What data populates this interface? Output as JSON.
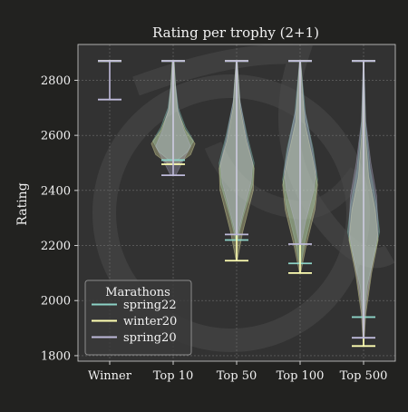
{
  "chart_data": {
    "type": "violin",
    "title": "Rating per trophy (2+1)",
    "ylabel": "Rating",
    "xlabel": "",
    "categories": [
      "Winner",
      "Top 10",
      "Top 50",
      "Top 100",
      "Top 500"
    ],
    "ylim": [
      1780,
      2930
    ],
    "yticks": [
      1800,
      2000,
      2200,
      2400,
      2600,
      2800
    ],
    "grid": true,
    "legend": {
      "title": "Marathons",
      "placement": "lower-left"
    },
    "series": [
      {
        "name": "spring22",
        "color": "#8dd3c7",
        "min": [
          2870,
          2510,
          2220,
          2135,
          1940
        ],
        "max": [
          2870,
          2870,
          2870,
          2870,
          2870
        ],
        "widths": [
          0,
          0.7,
          0.6,
          0.6,
          0.55
        ],
        "profiles": [
          [],
          [
            [
              2510,
              0.2
            ],
            [
              2540,
              0.7
            ],
            [
              2580,
              1.0
            ],
            [
              2630,
              0.6
            ],
            [
              2700,
              0.25
            ],
            [
              2780,
              0.12
            ],
            [
              2870,
              0.05
            ]
          ],
          [
            [
              2220,
              0.05
            ],
            [
              2300,
              0.35
            ],
            [
              2420,
              0.9
            ],
            [
              2500,
              1.0
            ],
            [
              2600,
              0.6
            ],
            [
              2720,
              0.2
            ],
            [
              2870,
              0.03
            ]
          ],
          [
            [
              2135,
              0.05
            ],
            [
              2220,
              0.3
            ],
            [
              2350,
              0.8
            ],
            [
              2440,
              1.0
            ],
            [
              2550,
              0.75
            ],
            [
              2680,
              0.3
            ],
            [
              2870,
              0.03
            ]
          ],
          [
            [
              1940,
              0.03
            ],
            [
              2050,
              0.2
            ],
            [
              2150,
              0.6
            ],
            [
              2250,
              1.0
            ],
            [
              2350,
              0.8
            ],
            [
              2480,
              0.4
            ],
            [
              2650,
              0.12
            ],
            [
              2870,
              0.02
            ]
          ]
        ]
      },
      {
        "name": "winter20",
        "color": "#ffffb3",
        "min": [
          2870,
          2495,
          2145,
          2100,
          1835
        ],
        "max": [
          2870,
          2870,
          2870,
          2870,
          2870
        ],
        "widths": [
          0,
          0.75,
          0.6,
          0.6,
          0.5
        ],
        "profiles": [
          [],
          [
            [
              2495,
              0.2
            ],
            [
              2530,
              0.8
            ],
            [
              2570,
              1.0
            ],
            [
              2620,
              0.55
            ],
            [
              2690,
              0.2
            ],
            [
              2780,
              0.1
            ],
            [
              2870,
              0.04
            ]
          ],
          [
            [
              2145,
              0.03
            ],
            [
              2250,
              0.35
            ],
            [
              2400,
              0.95
            ],
            [
              2480,
              1.0
            ],
            [
              2580,
              0.55
            ],
            [
              2700,
              0.2
            ],
            [
              2870,
              0.03
            ]
          ],
          [
            [
              2100,
              0.03
            ],
            [
              2200,
              0.35
            ],
            [
              2330,
              0.85
            ],
            [
              2420,
              1.0
            ],
            [
              2520,
              0.7
            ],
            [
              2650,
              0.25
            ],
            [
              2870,
              0.03
            ]
          ],
          [
            [
              1835,
              0.02
            ],
            [
              1950,
              0.15
            ],
            [
              2100,
              0.55
            ],
            [
              2220,
              1.0
            ],
            [
              2330,
              0.8
            ],
            [
              2450,
              0.35
            ],
            [
              2620,
              0.1
            ],
            [
              2870,
              0.02
            ]
          ]
        ]
      },
      {
        "name": "spring20",
        "color": "#bebada",
        "min": [
          2730,
          2455,
          2240,
          2205,
          1865
        ],
        "max": [
          2870,
          2870,
          2870,
          2870,
          2870
        ],
        "widths": [
          0,
          0.6,
          0.55,
          0.55,
          0.5
        ],
        "profiles": [
          [],
          [
            [
              2455,
              0.15
            ],
            [
              2500,
              0.5
            ],
            [
              2560,
              1.0
            ],
            [
              2620,
              0.6
            ],
            [
              2700,
              0.25
            ],
            [
              2800,
              0.1
            ],
            [
              2870,
              0.04
            ]
          ],
          [
            [
              2240,
              0.05
            ],
            [
              2320,
              0.4
            ],
            [
              2430,
              0.9
            ],
            [
              2500,
              1.0
            ],
            [
              2600,
              0.6
            ],
            [
              2730,
              0.2
            ],
            [
              2870,
              0.03
            ]
          ],
          [
            [
              2205,
              0.05
            ],
            [
              2290,
              0.35
            ],
            [
              2400,
              0.85
            ],
            [
              2470,
              1.0
            ],
            [
              2570,
              0.7
            ],
            [
              2700,
              0.25
            ],
            [
              2870,
              0.03
            ]
          ],
          [
            [
              1865,
              0.02
            ],
            [
              1980,
              0.15
            ],
            [
              2120,
              0.55
            ],
            [
              2250,
              1.0
            ],
            [
              2380,
              0.9
            ],
            [
              2500,
              0.5
            ],
            [
              2650,
              0.15
            ],
            [
              2870,
              0.02
            ]
          ]
        ]
      }
    ]
  }
}
